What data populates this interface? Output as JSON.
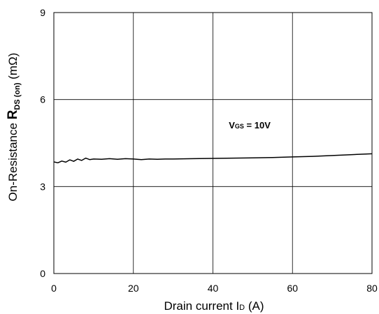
{
  "chart_data": {
    "type": "line",
    "title": "",
    "xlabel": {
      "main": "Drain current I",
      "sub": "D",
      "unit": " (A)"
    },
    "ylabel": {
      "prefix": "On-Resistance ",
      "symbol": "R",
      "sub": "DS (on)",
      "unit": " (mΩ)"
    },
    "xlim": [
      0,
      80
    ],
    "ylim": [
      0,
      9
    ],
    "xticks": [
      0,
      20,
      40,
      60,
      80
    ],
    "yticks": [
      0,
      3,
      6,
      9
    ],
    "x_tick_labels": [
      "0",
      "20",
      "40",
      "60",
      "80"
    ],
    "y_tick_labels": [
      "0",
      "3",
      "6",
      "9"
    ],
    "grid": true,
    "legend": "none",
    "annotation": {
      "symbol": "V",
      "sub": "GS",
      "value": " = 10V",
      "x": 44,
      "y": 5.0
    },
    "series": [
      {
        "color": "#000000",
        "x": [
          0,
          1,
          2,
          3,
          4,
          5,
          6,
          7,
          8,
          9,
          10,
          12,
          14,
          16,
          18,
          20,
          22,
          24,
          26,
          28,
          30,
          35,
          40,
          45,
          50,
          55,
          60,
          65,
          70,
          75,
          80
        ],
        "y": [
          3.85,
          3.82,
          3.88,
          3.84,
          3.92,
          3.87,
          3.95,
          3.9,
          3.98,
          3.93,
          3.95,
          3.94,
          3.96,
          3.94,
          3.96,
          3.95,
          3.93,
          3.95,
          3.94,
          3.95,
          3.95,
          3.96,
          3.97,
          3.98,
          3.99,
          4.0,
          4.02,
          4.04,
          4.07,
          4.1,
          4.13
        ]
      }
    ]
  }
}
